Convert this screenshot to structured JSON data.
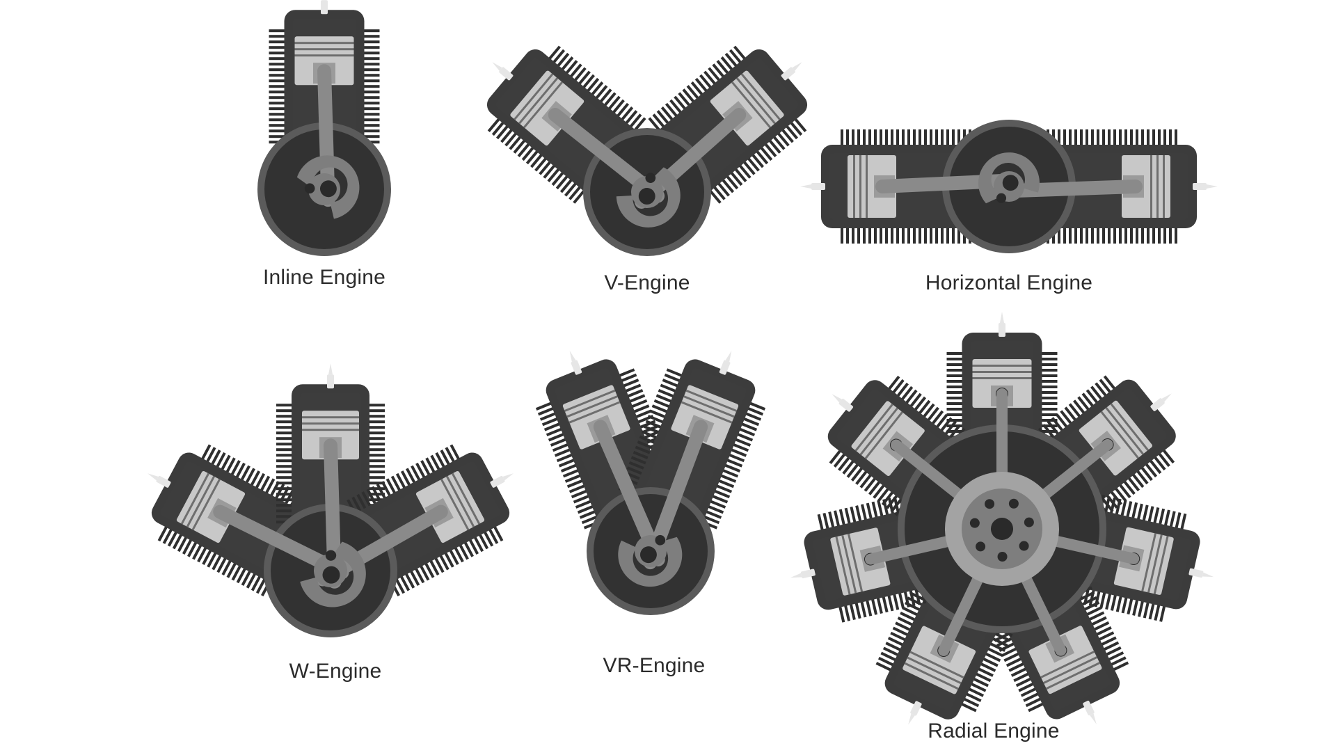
{
  "colors": {
    "fins": "#2f2f2f",
    "casing": "#3c3c3c",
    "crankcase": "#323232",
    "casing_edge": "#5b5b5b",
    "cylinder": "#3d3d3d",
    "piston": "#c8c8c8",
    "piston_dark": "#9b9b9b",
    "ring": "#6e6e6e",
    "rod": "#8a8a8a",
    "crank": "#7e7e7e",
    "hub": "#a3a3a3",
    "hole": "#2a2a2a",
    "plug": "#e6e6e6",
    "label": "#2b2b2b"
  },
  "engines": [
    {
      "id": "inline",
      "label": "Inline Engine",
      "icon": "inline-engine-icon"
    },
    {
      "id": "v",
      "label": "V-Engine",
      "icon": "v-engine-icon"
    },
    {
      "id": "horizontal",
      "label": "Horizontal Engine",
      "icon": "horizontal-engine-icon"
    },
    {
      "id": "w",
      "label": "W-Engine",
      "icon": "w-engine-icon"
    },
    {
      "id": "vr",
      "label": "VR-Engine",
      "icon": "vr-engine-icon"
    },
    {
      "id": "radial",
      "label": "Radial Engine",
      "icon": "radial-engine-icon"
    }
  ]
}
